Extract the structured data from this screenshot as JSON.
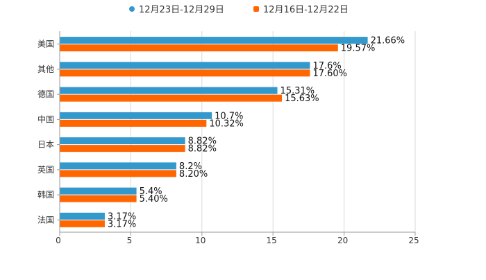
{
  "chart_data": {
    "type": "bar",
    "orientation": "horizontal",
    "categories": [
      "美国",
      "其他",
      "德国",
      "中国",
      "日本",
      "英国",
      "韩国",
      "法国"
    ],
    "series": [
      {
        "name": "12月23日-12月29日",
        "color": "#3399cc",
        "values": [
          21.66,
          17.6,
          15.31,
          10.7,
          8.82,
          8.2,
          5.4,
          3.17
        ],
        "labels": [
          "21.66%",
          "17.6%",
          "15.31%",
          "10.7%",
          "8.82%",
          "8.2%",
          "5.4%",
          "3.17%"
        ]
      },
      {
        "name": "12月16日-12月22日",
        "color": "#ff6600",
        "values": [
          19.57,
          17.6,
          15.63,
          10.32,
          8.82,
          8.2,
          5.4,
          3.17
        ],
        "labels": [
          "19.57%",
          "17.60%",
          "15.63%",
          "10.32%",
          "8.82%",
          "8.20%",
          "5.40%",
          "3.17%"
        ]
      }
    ],
    "x_ticks": [
      "0",
      "5",
      "10",
      "15",
      "20",
      "25"
    ],
    "xlim": [
      0,
      25
    ],
    "grid": true,
    "legend_position": "top-center"
  }
}
